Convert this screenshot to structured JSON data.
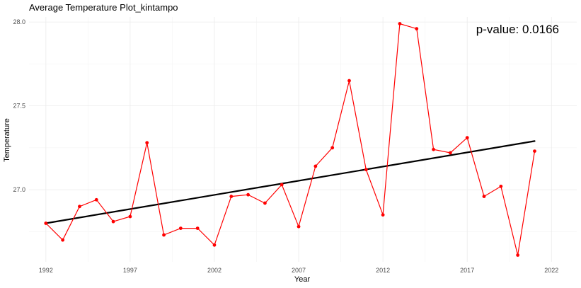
{
  "chart_data": {
    "type": "line",
    "title": "Average Temperature Plot_kintampo",
    "xlabel": "Year",
    "ylabel": "Temperature",
    "annotation": "p-value: 0.0166",
    "xlim": [
      1991,
      2023.5
    ],
    "ylim": [
      26.57,
      28.03
    ],
    "x_ticks": [
      1992,
      1997,
      2002,
      2007,
      2012,
      2017,
      2022
    ],
    "y_ticks": [
      27.0,
      27.5,
      28.0
    ],
    "y_tick_labels": [
      "27.0",
      "27.5",
      "28.0"
    ],
    "grid": true,
    "series": [
      {
        "color": "#ff0000",
        "x": [
          1992,
          1993,
          1994,
          1995,
          1996,
          1997,
          1998,
          1999,
          2000,
          2001,
          2002,
          2003,
          2004,
          2005,
          2006,
          2007,
          2008,
          2009,
          2010,
          2011,
          2012,
          2013,
          2014,
          2015,
          2016,
          2017,
          2018,
          2019,
          2020,
          2021
        ],
        "values": [
          26.8,
          26.7,
          26.9,
          26.94,
          26.81,
          26.84,
          27.28,
          26.73,
          26.77,
          26.77,
          26.67,
          26.96,
          26.97,
          26.92,
          27.03,
          26.78,
          27.14,
          27.25,
          27.65,
          27.12,
          26.85,
          27.99,
          27.96,
          27.24,
          27.22,
          27.31,
          26.96,
          27.02,
          26.61,
          27.23
        ]
      }
    ],
    "trend": {
      "color": "#000000",
      "x": [
        1992,
        2021
      ],
      "values": [
        26.8,
        27.29
      ]
    }
  }
}
